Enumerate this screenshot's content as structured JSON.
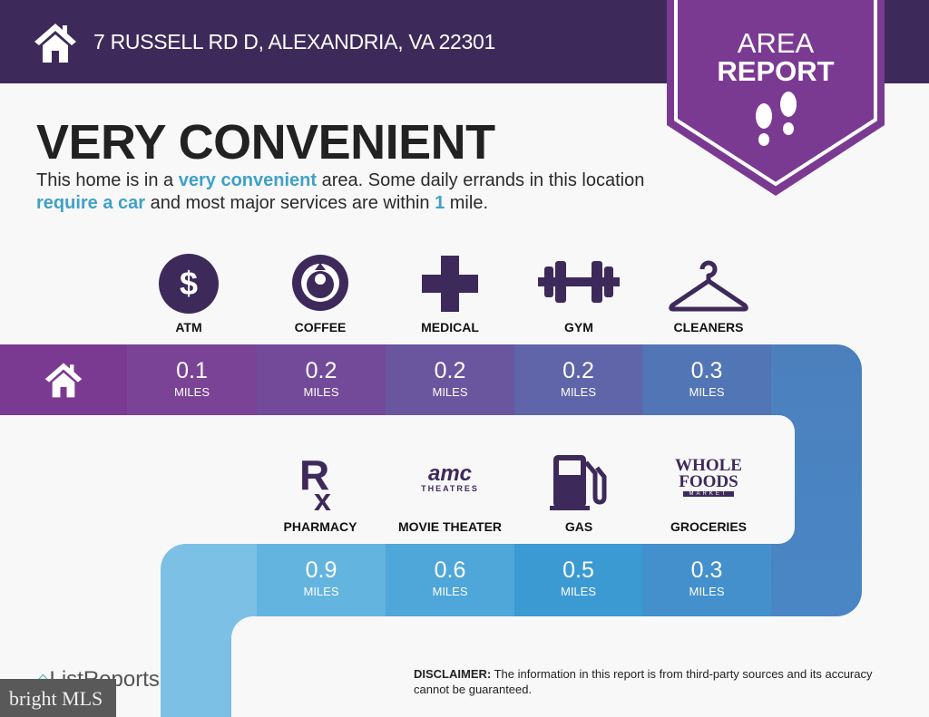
{
  "header": {
    "address": "7 RUSSELL RD D, ALEXANDRIA, VA 22301",
    "home_icon": "house-icon"
  },
  "banner": {
    "line1": "AREA",
    "line2": "REPORT",
    "icon": "footprints-icon",
    "color": "#7b3a92"
  },
  "rating": {
    "title": "VERY CONVENIENT"
  },
  "description": {
    "t1": "This home is in a ",
    "h1": "very convenient",
    "t2": " area. Some daily errands in this location ",
    "h2": "require a car",
    "t3": " and most major services are within ",
    "h3": "1",
    "t4": " mile."
  },
  "services_row1": [
    {
      "label": "ATM",
      "distance": "0.1",
      "unit": "MILES",
      "icon": "dollar-icon"
    },
    {
      "label": "COFFEE",
      "distance": "0.2",
      "unit": "MILES",
      "icon": "starbucks-logo-icon"
    },
    {
      "label": "MEDICAL",
      "distance": "0.2",
      "unit": "MILES",
      "icon": "medical-cross-icon"
    },
    {
      "label": "GYM",
      "distance": "0.2",
      "unit": "MILES",
      "icon": "dumbbell-icon"
    },
    {
      "label": "CLEANERS",
      "distance": "0.3",
      "unit": "MILES",
      "icon": "hanger-icon"
    }
  ],
  "services_row2": [
    {
      "label": "PHARMACY",
      "distance": "0.9",
      "unit": "MILES",
      "icon": "rx-icon"
    },
    {
      "label": "MOVIE THEATER",
      "distance": "0.6",
      "unit": "MILES",
      "icon": "amc-logo-icon",
      "logo_text": "amc",
      "logo_sub": "THEATRES"
    },
    {
      "label": "GAS",
      "distance": "0.5",
      "unit": "MILES",
      "icon": "gas-pump-icon"
    },
    {
      "label": "GROCERIES",
      "distance": "0.3",
      "unit": "MILES",
      "icon": "whole-foods-logo-icon",
      "logo_text": "WHOLE FOODS",
      "logo_sub": "MARKET"
    }
  ],
  "colors": {
    "header": "#3e2a5a",
    "icon": "#3e2a5a",
    "highlight": "#3fa1c6"
  },
  "footer": {
    "disclaimer_label": "DISCLAIMER:",
    "disclaimer_text": " The information in this report is from third-party sources and its accuracy cannot be guaranteed.",
    "brand": "ListReports",
    "watermark": "bright MLS"
  }
}
